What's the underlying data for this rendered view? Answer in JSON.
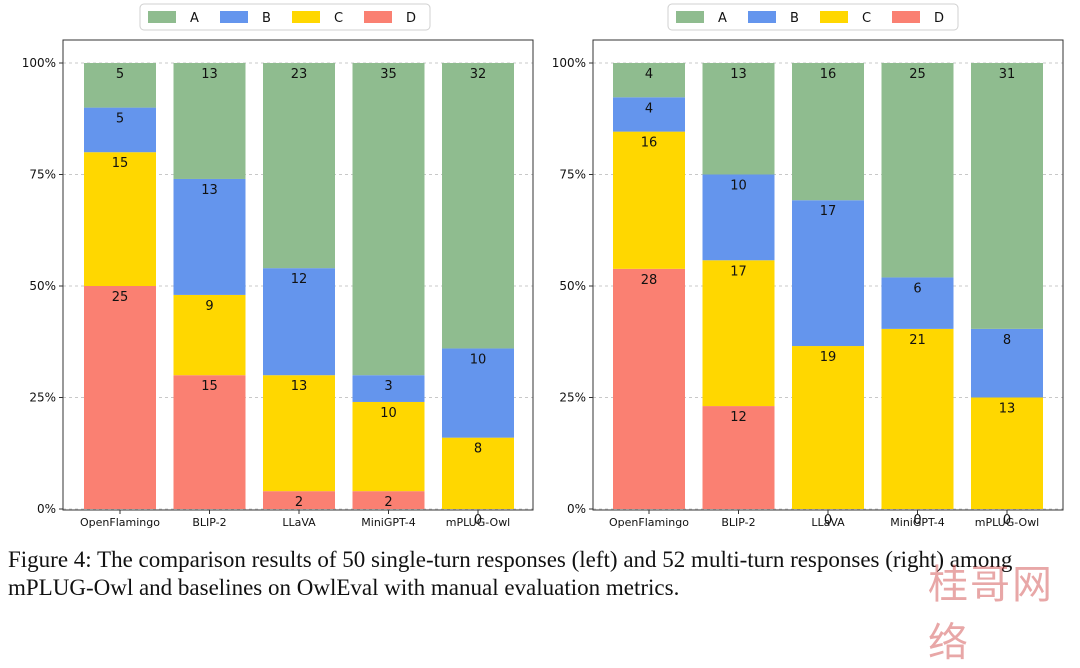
{
  "colors": {
    "A": "#8fbc8f",
    "B": "#6495ed",
    "C": "#ffd700",
    "D": "#fa8072"
  },
  "chart_data": [
    {
      "type": "bar",
      "stacked": true,
      "normalized": true,
      "categories": [
        "OpenFlamingo",
        "BLIP-2",
        "LLaVA",
        "MiniGPT-4",
        "mPLUG-Owl"
      ],
      "series": [
        {
          "name": "D",
          "values": [
            25,
            15,
            2,
            2,
            0
          ]
        },
        {
          "name": "C",
          "values": [
            15,
            9,
            13,
            10,
            8
          ]
        },
        {
          "name": "B",
          "values": [
            5,
            13,
            12,
            3,
            10
          ]
        },
        {
          "name": "A",
          "values": [
            5,
            13,
            23,
            35,
            32
          ]
        }
      ],
      "legend_order": [
        "A",
        "B",
        "C",
        "D"
      ],
      "legend_position": "top-center",
      "y_ticks": [
        "0%",
        "25%",
        "50%",
        "75%",
        "100%"
      ],
      "ylim": [
        0,
        100
      ],
      "grid": "horizontal-dashed",
      "total": 50
    },
    {
      "type": "bar",
      "stacked": true,
      "normalized": true,
      "categories": [
        "OpenFlamingo",
        "BLIP-2",
        "LLaVA",
        "MiniGPT-4",
        "mPLUG-Owl"
      ],
      "series": [
        {
          "name": "D",
          "values": [
            28,
            12,
            0,
            0,
            0
          ]
        },
        {
          "name": "C",
          "values": [
            16,
            17,
            19,
            21,
            13
          ]
        },
        {
          "name": "B",
          "values": [
            4,
            10,
            17,
            6,
            8
          ]
        },
        {
          "name": "A",
          "values": [
            4,
            13,
            16,
            25,
            31
          ]
        }
      ],
      "legend_order": [
        "A",
        "B",
        "C",
        "D"
      ],
      "legend_position": "top-center",
      "y_ticks": [
        "0%",
        "25%",
        "50%",
        "75%",
        "100%"
      ],
      "ylim": [
        0,
        100
      ],
      "grid": "horizontal-dashed",
      "total": 52
    }
  ],
  "caption": "Figure 4: The comparison results of 50 single-turn responses (left) and 52 multi-turn responses (right) among mPLUG-Owl and baselines on OwlEval with manual evaluation metrics.",
  "watermark": "桂哥网络"
}
